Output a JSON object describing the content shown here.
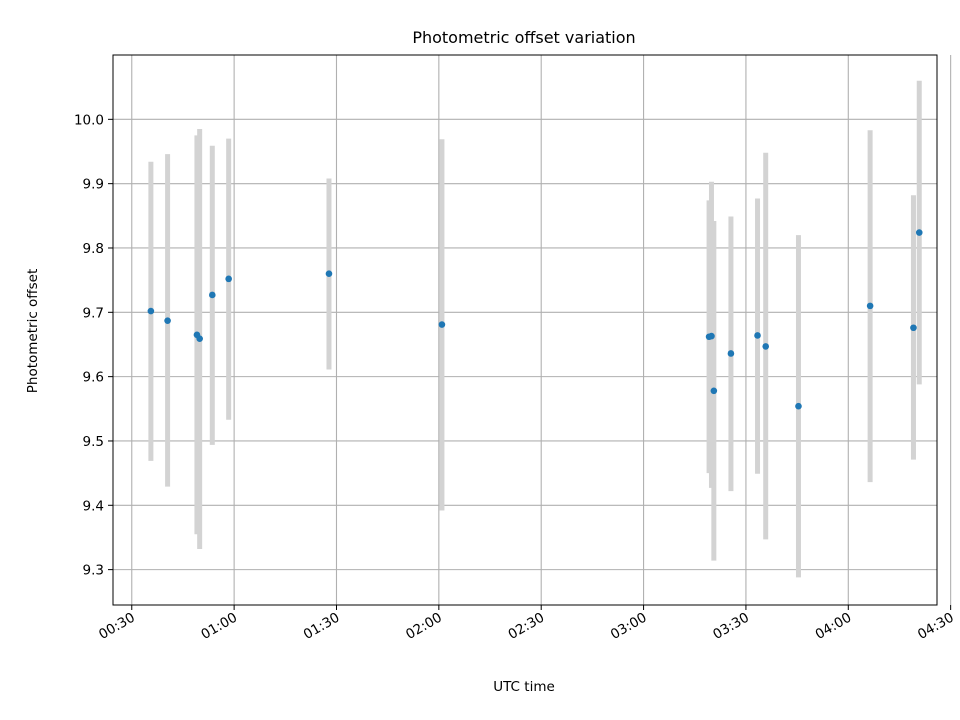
{
  "chart_data": {
    "type": "scatter",
    "title": "Photometric offset variation",
    "xlabel": "UTC time",
    "ylabel": "Photometric offset",
    "x_unit": "minutes since 00:00 UTC",
    "xlim": [
      24.5,
      266
    ],
    "ylim": [
      9.245,
      10.1
    ],
    "grid": true,
    "x_ticks": [
      {
        "value": 30,
        "label": "00:30"
      },
      {
        "value": 60,
        "label": "01:00"
      },
      {
        "value": 90,
        "label": "01:30"
      },
      {
        "value": 120,
        "label": "02:00"
      },
      {
        "value": 150,
        "label": "02:30"
      },
      {
        "value": 180,
        "label": "03:00"
      },
      {
        "value": 210,
        "label": "03:30"
      },
      {
        "value": 240,
        "label": "04:00"
      },
      {
        "value": 270,
        "label": "04:30"
      }
    ],
    "y_ticks": [
      {
        "value": 9.3,
        "label": "9.3"
      },
      {
        "value": 9.4,
        "label": "9.4"
      },
      {
        "value": 9.5,
        "label": "9.5"
      },
      {
        "value": 9.6,
        "label": "9.6"
      },
      {
        "value": 9.7,
        "label": "9.7"
      },
      {
        "value": 9.8,
        "label": "9.8"
      },
      {
        "value": 9.9,
        "label": "9.9"
      },
      {
        "value": 10.0,
        "label": "10.0"
      }
    ],
    "point_color": "#1f77b4",
    "errorbar_color": "#d3d3d3",
    "points": [
      {
        "x": 35.6,
        "y": 9.702,
        "low": 9.469,
        "high": 9.934
      },
      {
        "x": 40.5,
        "y": 9.687,
        "low": 9.429,
        "high": 9.946
      },
      {
        "x": 49.1,
        "y": 9.665,
        "low": 9.355,
        "high": 9.975
      },
      {
        "x": 49.9,
        "y": 9.659,
        "low": 9.332,
        "high": 9.985
      },
      {
        "x": 53.6,
        "y": 9.727,
        "low": 9.494,
        "high": 9.959
      },
      {
        "x": 58.4,
        "y": 9.752,
        "low": 9.533,
        "high": 9.97
      },
      {
        "x": 87.8,
        "y": 9.76,
        "low": 9.611,
        "high": 9.908
      },
      {
        "x": 120.9,
        "y": 9.681,
        "low": 9.392,
        "high": 9.969
      },
      {
        "x": 199.2,
        "y": 9.662,
        "low": 9.45,
        "high": 9.874
      },
      {
        "x": 199.9,
        "y": 9.663,
        "low": 9.427,
        "high": 9.903
      },
      {
        "x": 200.6,
        "y": 9.578,
        "low": 9.314,
        "high": 9.842
      },
      {
        "x": 205.6,
        "y": 9.636,
        "low": 9.422,
        "high": 9.849
      },
      {
        "x": 213.4,
        "y": 9.664,
        "low": 9.449,
        "high": 9.877
      },
      {
        "x": 215.8,
        "y": 9.647,
        "low": 9.347,
        "high": 9.948
      },
      {
        "x": 225.4,
        "y": 9.554,
        "low": 9.288,
        "high": 9.82
      },
      {
        "x": 246.4,
        "y": 9.71,
        "low": 9.436,
        "high": 9.983
      },
      {
        "x": 259.1,
        "y": 9.676,
        "low": 9.471,
        "high": 9.882
      },
      {
        "x": 260.8,
        "y": 9.824,
        "low": 9.588,
        "high": 10.06
      }
    ]
  }
}
